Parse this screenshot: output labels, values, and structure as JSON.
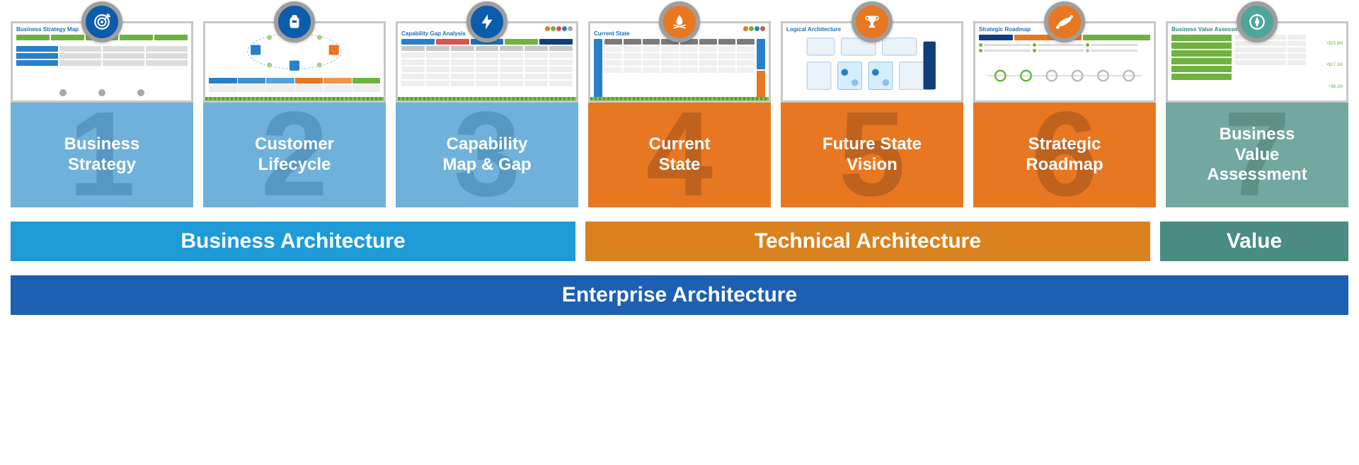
{
  "colors": {
    "blue_icon": "#0b5cab",
    "orange_icon": "#e87722",
    "teal_icon": "#4fa59a",
    "blue_tile": "#6fb1db",
    "blue_tile_num": "#3a7aa8",
    "orange_tile": "#e87722",
    "orange_tile_num": "#8f4a18",
    "teal_tile": "#72a8a0",
    "teal_tile_num": "#46746d",
    "group_blue": "#1e9bd7",
    "group_orange": "#d9821f",
    "group_teal": "#4a8c82",
    "bottom_blue": "#1d5fb3",
    "thumb_title_blue": "#1e6fb8",
    "thumb_title_teal": "#2d8a7a",
    "green": "#6eb33f",
    "grey": "#dcdcdc",
    "dark_grey": "#a8a8a8",
    "mid_blue": "#2a7fc9",
    "orange_acc": "#e87722",
    "red": "#d9534f",
    "dark_blue": "#0f3f7a"
  },
  "tiles": [
    {
      "number": "1",
      "label": "Business\nStrategy",
      "thumb_title": "Business Strategy Map",
      "group": "business",
      "icon": "target"
    },
    {
      "number": "2",
      "label": "Customer\nLifecycle",
      "thumb_title": "",
      "group": "business",
      "icon": "backpack"
    },
    {
      "number": "3",
      "label": "Capability\nMap & Gap",
      "thumb_title": "Capability Gap Analysis",
      "group": "business",
      "icon": "bolt"
    },
    {
      "number": "4",
      "label": "Current\nState",
      "thumb_title": "Current State",
      "group": "technical",
      "icon": "campfire"
    },
    {
      "number": "5",
      "label": "Future State\nVision",
      "thumb_title": "Logical Architecture",
      "group": "technical",
      "icon": "trophy"
    },
    {
      "number": "6",
      "label": "Strategic\nRoadmap",
      "thumb_title": "Strategic Roadmap",
      "group": "technical",
      "icon": "kayak"
    },
    {
      "number": "7",
      "label": "Business\nValue\nAssessment",
      "thumb_title": "Business Value Assessment",
      "group": "value",
      "icon": "compass"
    }
  ],
  "groups": [
    {
      "id": "business",
      "label": "Business Architecture",
      "span": 3,
      "color_key": "group_blue"
    },
    {
      "id": "technical",
      "label": "Technical Architecture",
      "span": 3,
      "color_key": "group_orange"
    },
    {
      "id": "value",
      "label": "Value",
      "span": 1,
      "color_key": "group_teal"
    }
  ],
  "bottom_label": "Enterprise Architecture",
  "typography": {
    "label_fontsize": 24,
    "group_fontsize": 30,
    "bottom_fontsize": 30,
    "number_fontsize": 170
  }
}
